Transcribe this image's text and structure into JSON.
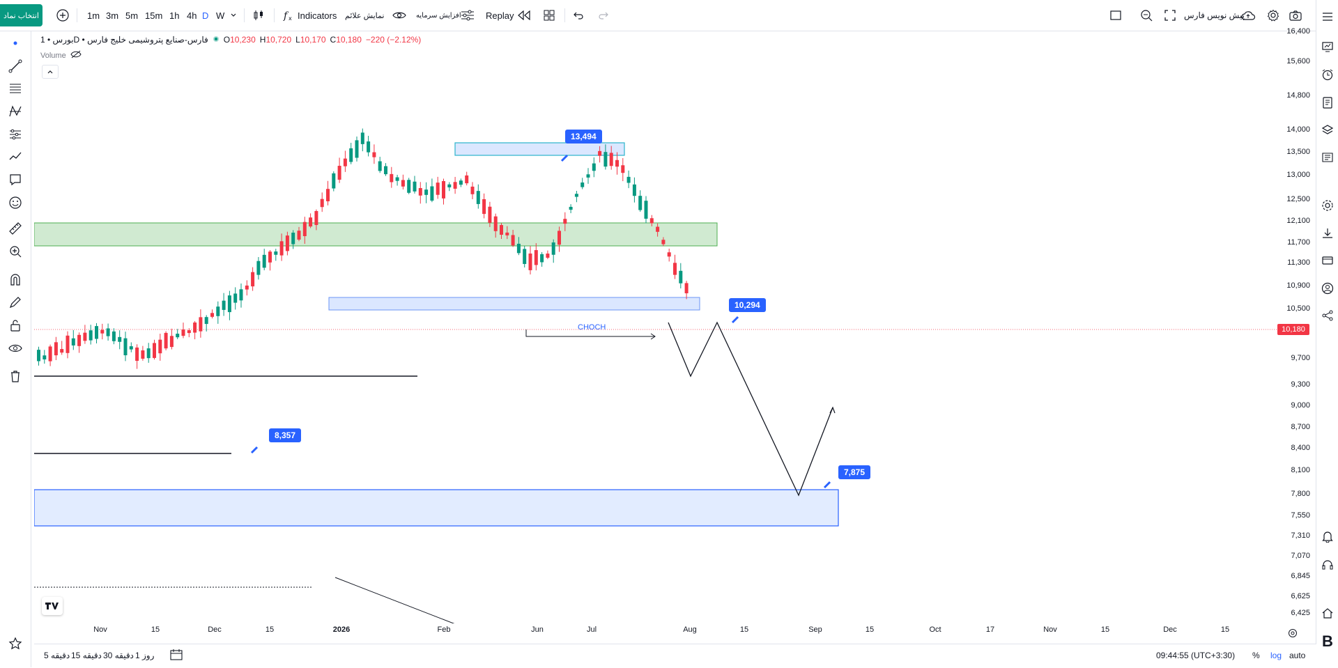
{
  "topbar": {
    "symbol_button": "انتخاب نماد",
    "timeframes": [
      "1m",
      "3m",
      "5m",
      "15m",
      "1h",
      "4h",
      "D",
      "W"
    ],
    "active_timeframe": "D",
    "indicators_label": "Indicators",
    "show_signals_label": "نمایش علائم",
    "add_capital_label": "افزایش سرمایه",
    "replay_label": "Replay",
    "broker_label": "پیش نویس فارس"
  },
  "legend": {
    "title": "بورس • 1D • فارس-صنایع پتروشیمی خلیج فارس",
    "open_label": "O",
    "open": "10,230",
    "high_label": "H",
    "high": "10,720",
    "low_label": "L",
    "low": "10,170",
    "close_label": "C",
    "close": "10,180",
    "change": "−220 (−2.12%)",
    "volume_label": "Volume"
  },
  "price_scale": {
    "labels": [
      "16,400",
      "15,600",
      "14,800",
      "14,000",
      "13,500",
      "13,000",
      "12,500",
      "12,100",
      "11,700",
      "11,300",
      "10,900",
      "10,500",
      "9,700",
      "9,300",
      "9,000",
      "8,700",
      "8,400",
      "8,100",
      "7,800",
      "7,550",
      "7,310",
      "7,070",
      "6,845",
      "6,625",
      "6,425"
    ],
    "current_price": "10,180",
    "current_color": "#f23645"
  },
  "time_axis": {
    "labels": [
      "Nov",
      "15",
      "Dec",
      "15",
      "2026",
      "Feb",
      "Jun",
      "Jul",
      "Aug",
      "15",
      "Sep",
      "15",
      "Oct",
      "17",
      "Nov",
      "15",
      "Dec",
      "15"
    ]
  },
  "annotations": {
    "badges": [
      "13,494",
      "10,294",
      "8,357",
      "7,875"
    ],
    "choch": "CHOCH"
  },
  "bottombar": {
    "ranges": [
      "5 دقیقه",
      "15 دقیقه",
      "30 دقیقه",
      "1 روز"
    ],
    "clock": "09:44:55 (UTC+3:30)",
    "percent": "%",
    "log": "log",
    "auto": "auto"
  },
  "colors": {
    "up": "#089981",
    "down": "#f23645",
    "accent": "#2962ff",
    "zone_green": "#c8e6c9",
    "zone_blue": "#dbe7ff"
  },
  "chart_data": {
    "type": "candlestick",
    "ylim": [
      6300,
      16500
    ],
    "y_scale": "log",
    "zones": [
      {
        "name": "supply",
        "low": 13300,
        "high": 13700
      },
      {
        "name": "green",
        "low": 11600,
        "high": 12100
      },
      {
        "name": "mid",
        "low": 10500,
        "high": 10700
      },
      {
        "name": "demand",
        "low": 7400,
        "high": 7875
      }
    ],
    "levels": [
      13494,
      10294,
      8357,
      7875
    ]
  }
}
